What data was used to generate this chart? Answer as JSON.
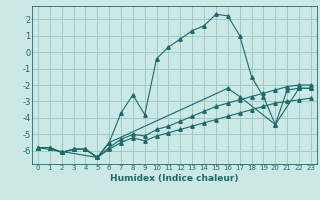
{
  "xlabel": "Humidex (Indice chaleur)",
  "bg_color": "#cce8e4",
  "grid_color": "#99cccc",
  "line_color": "#1a6b6b",
  "xlim": [
    -0.5,
    23.5
  ],
  "ylim": [
    -6.8,
    2.8
  ],
  "xticks": [
    0,
    1,
    2,
    3,
    4,
    5,
    6,
    7,
    8,
    9,
    10,
    11,
    12,
    13,
    14,
    15,
    16,
    17,
    18,
    19,
    20,
    21,
    22,
    23
  ],
  "yticks": [
    -6,
    -5,
    -4,
    -3,
    -2,
    -1,
    0,
    1,
    2
  ],
  "lines": [
    {
      "x": [
        0,
        1,
        2,
        3,
        4,
        5,
        6,
        7,
        8,
        9,
        10,
        11,
        12,
        13,
        14,
        15,
        16,
        17,
        18,
        19,
        20,
        21,
        22,
        23
      ],
      "y": [
        -5.8,
        -5.8,
        -6.1,
        -5.9,
        -5.9,
        -6.4,
        -5.5,
        -3.7,
        -2.6,
        -3.8,
        -0.4,
        0.3,
        0.8,
        1.3,
        1.6,
        2.3,
        2.2,
        1.0,
        -1.5,
        -2.7,
        -4.4,
        -2.3,
        -2.2,
        -2.2
      ]
    },
    {
      "x": [
        0,
        5,
        6,
        16,
        17,
        20,
        22,
        23
      ],
      "y": [
        -5.8,
        -6.4,
        -5.5,
        -2.2,
        -2.7,
        -4.4,
        -2.2,
        -2.2
      ]
    },
    {
      "x": [
        0,
        1,
        2,
        3,
        4,
        5,
        6,
        7,
        8,
        9,
        10,
        11,
        12,
        13,
        14,
        15,
        16,
        17,
        18,
        19,
        20,
        21,
        22,
        23
      ],
      "y": [
        -5.8,
        -5.8,
        -6.1,
        -5.9,
        -5.9,
        -6.4,
        -5.8,
        -5.3,
        -5.0,
        -5.1,
        -4.7,
        -4.5,
        -4.2,
        -3.9,
        -3.6,
        -3.3,
        -3.1,
        -2.9,
        -2.7,
        -2.5,
        -2.3,
        -2.1,
        -2.0,
        -2.0
      ]
    },
    {
      "x": [
        0,
        1,
        2,
        3,
        4,
        5,
        6,
        7,
        8,
        9,
        10,
        11,
        12,
        13,
        14,
        15,
        16,
        17,
        18,
        19,
        20,
        21,
        22,
        23
      ],
      "y": [
        -5.8,
        -5.8,
        -6.1,
        -5.9,
        -5.9,
        -6.4,
        -5.9,
        -5.5,
        -5.2,
        -5.4,
        -5.1,
        -4.9,
        -4.7,
        -4.5,
        -4.3,
        -4.1,
        -3.9,
        -3.7,
        -3.5,
        -3.3,
        -3.1,
        -3.0,
        -2.9,
        -2.8
      ]
    }
  ]
}
